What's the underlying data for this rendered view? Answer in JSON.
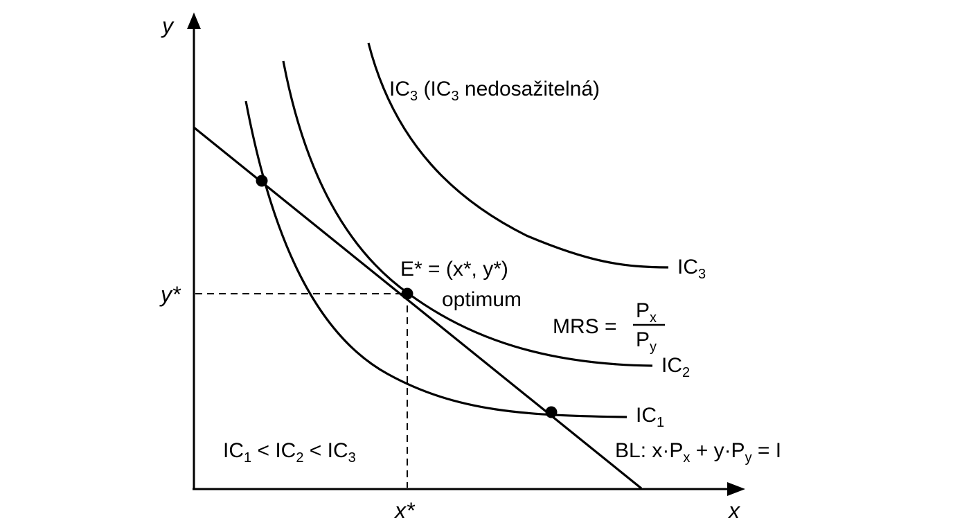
{
  "axes": {
    "x_label": "x",
    "y_label": "y",
    "x_star": "x*",
    "y_star": "y*"
  },
  "curves": {
    "ic1_main": "IC",
    "ic1_sub": "1",
    "ic2_main": "IC",
    "ic2_sub": "2",
    "ic3_main": "IC",
    "ic3_sub": "3"
  },
  "annotations": {
    "ic3_top_a": "IC",
    "ic3_top_sub1": "3",
    "ic3_top_b": " (IC",
    "ic3_top_sub2": "3",
    "ic3_top_c": " nedosažitelná)",
    "optimum_point": "E* = (x*, y*)",
    "optimum_word": "optimum",
    "mrs_left": "MRS =",
    "mrs_num_main": "P",
    "mrs_num_sub": "x",
    "mrs_den_main": "P",
    "mrs_den_sub": "y"
  },
  "budget_line": {
    "a": "BL: x·P",
    "sub1": "x",
    "b": " + y·P",
    "sub2": "y",
    "c": " = I"
  },
  "ordering": {
    "a": "IC",
    "sub1": "1",
    "b": " < IC",
    "sub2": "2",
    "c": " < IC",
    "sub3": "3"
  },
  "colors": {
    "ink": "#000000",
    "background": "#ffffff"
  }
}
